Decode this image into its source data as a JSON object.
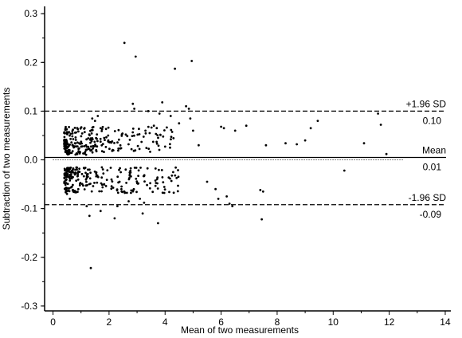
{
  "chart_data": {
    "type": "scatter",
    "xlabel": "Mean of two measurements",
    "ylabel": "Subtraction of two measurements",
    "xlim": [
      -0.3,
      14.2
    ],
    "ylim": [
      -0.31,
      0.315
    ],
    "x_ticks": [
      0,
      2,
      4,
      6,
      8,
      10,
      12,
      14
    ],
    "y_ticks": [
      -0.3,
      -0.2,
      -0.1,
      0.0,
      0.1,
      0.2,
      0.3
    ],
    "x_tick_labels": [
      "0",
      "2",
      "4",
      "6",
      "8",
      "10",
      "12",
      "14"
    ],
    "y_tick_labels": [
      "-0.3",
      "-0.2",
      "-0.1",
      "0.0",
      "0.1",
      "0.2",
      "0.3"
    ],
    "grid": false,
    "reference_lines": [
      {
        "label": "+1.96 SD",
        "value_label": "0.10",
        "y": 0.1,
        "style": "dashed"
      },
      {
        "label": "Mean",
        "value_label": "0.01",
        "y": 0.005,
        "style": "solid"
      },
      {
        "label": "-1.96 SD",
        "value_label": "-0.09",
        "y": -0.092,
        "style": "dashed"
      }
    ],
    "zero_line": {
      "y": 0.0,
      "style": "dotted",
      "x_range": [
        0,
        12.5
      ]
    },
    "points": [
      [
        2.55,
        0.24
      ],
      [
        2.95,
        0.212
      ],
      [
        4.95,
        0.203
      ],
      [
        4.35,
        0.187
      ],
      [
        1.35,
        -0.222
      ],
      [
        3.75,
        -0.13
      ],
      [
        7.45,
        -0.122
      ],
      [
        11.9,
        0.012
      ],
      [
        10.4,
        -0.022
      ],
      [
        11.6,
        0.095
      ],
      [
        11.7,
        0.072
      ],
      [
        11.1,
        0.034
      ],
      [
        9.45,
        0.08
      ],
      [
        9.2,
        0.065
      ],
      [
        9.0,
        0.04
      ],
      [
        8.7,
        0.032
      ],
      [
        8.3,
        0.034
      ],
      [
        7.6,
        0.03
      ],
      [
        7.5,
        -0.065
      ],
      [
        7.4,
        -0.062
      ],
      [
        6.9,
        0.07
      ],
      [
        6.5,
        0.06
      ],
      [
        6.1,
        0.065
      ],
      [
        6.0,
        0.068
      ],
      [
        5.9,
        -0.08
      ],
      [
        6.2,
        -0.075
      ],
      [
        6.3,
        -0.09
      ],
      [
        6.4,
        -0.095
      ],
      [
        5.8,
        -0.06
      ],
      [
        5.5,
        -0.045
      ],
      [
        5.2,
        0.03
      ],
      [
        5.0,
        0.06
      ],
      [
        4.9,
        0.085
      ],
      [
        4.85,
        0.105
      ],
      [
        4.75,
        0.11
      ],
      [
        4.5,
        0.075
      ],
      [
        4.2,
        0.09
      ],
      [
        3.9,
        0.118
      ],
      [
        3.8,
        0.095
      ],
      [
        3.6,
        0.07
      ],
      [
        3.4,
        0.1
      ],
      [
        3.3,
        0.06
      ],
      [
        3.25,
        -0.088
      ],
      [
        3.2,
        -0.11
      ],
      [
        3.1,
        -0.08
      ],
      [
        2.9,
        0.105
      ],
      [
        2.85,
        0.115
      ],
      [
        2.7,
        -0.085
      ],
      [
        2.45,
        -0.065
      ],
      [
        2.3,
        -0.095
      ],
      [
        2.2,
        -0.12
      ],
      [
        1.7,
        -0.105
      ],
      [
        1.6,
        0.09
      ],
      [
        1.5,
        0.08
      ],
      [
        1.4,
        0.085
      ],
      [
        1.3,
        -0.115
      ],
      [
        1.2,
        -0.095
      ],
      [
        0.5,
        -0.07
      ],
      [
        0.6,
        -0.08
      ]
    ],
    "clusters": [
      {
        "name": "",
        "x_range": [
          0.4,
          4.5
        ],
        "y_range": [
          0.015,
          0.068
        ],
        "count": 220,
        "seed": 7
      },
      {
        "name": "",
        "x_range": [
          0.4,
          4.5
        ],
        "y_range": [
          -0.068,
          -0.015
        ],
        "count": 210,
        "seed": 13
      },
      {
        "name": "",
        "x_range": [
          0.5,
          1.3
        ],
        "y_range": [
          0.01,
          0.03
        ],
        "count": 40,
        "seed": 21
      },
      {
        "name": "",
        "x_range": [
          0.5,
          1.3
        ],
        "y_range": [
          -0.035,
          -0.015
        ],
        "count": 40,
        "seed": 29
      }
    ]
  }
}
